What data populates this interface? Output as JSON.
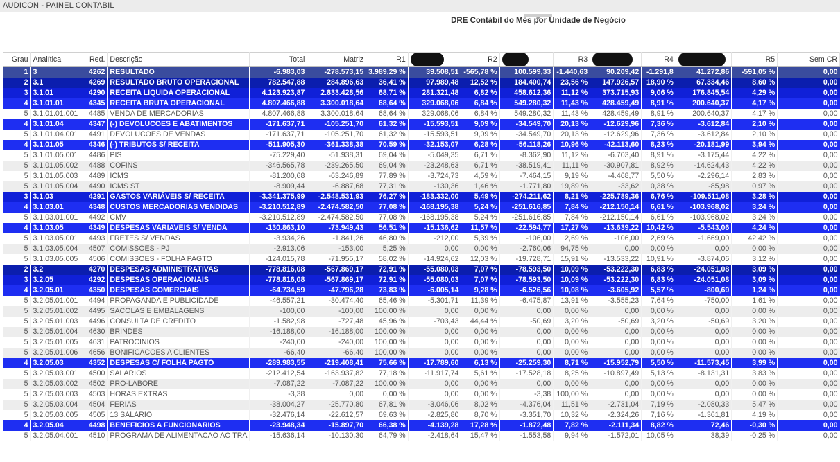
{
  "app": {
    "title": "AUDICON - PAINEL CONTABIL"
  },
  "report": {
    "title": "DRE Contábil do Mês por Unidade de Negócio"
  },
  "table": {
    "headers": [
      "Grau",
      "Analítica",
      "Red.",
      "Descrição",
      "Total",
      "Matriz",
      "R1",
      "",
      "R2",
      "",
      "R3",
      "",
      "R4",
      "",
      "R5",
      "Sem CR"
    ],
    "rows": [
      {
        "level": 1,
        "cells": [
          "1",
          "3",
          "4262",
          "RESULTADO",
          "-6.983,03",
          "-278.573,15",
          "3.989,29 %",
          "39.508,51",
          "-565,78 %",
          "100.599,33",
          "-1.440,63",
          "90.209,42",
          "-1.291,8",
          "41.272,86",
          "-591,05 %",
          "0,00"
        ]
      },
      {
        "level": 2,
        "cells": [
          "2",
          "3.1",
          "4269",
          "RESULTADO BRUTO OPERACIONAL",
          "782.547,88",
          "284.896,63",
          "36,41 %",
          "97.989,48",
          "12,52 %",
          "184.400,74",
          "23,56 %",
          "147.926,57",
          "18,90 %",
          "67.334,46",
          "8,60 %",
          "0,00"
        ]
      },
      {
        "level": 3,
        "cells": [
          "3",
          "3.1.01",
          "4290",
          "RECEITA LIQUIDA OPERACIONAL",
          "4.123.923,87",
          "2.833.428,56",
          "68,71 %",
          "281.321,48",
          "6,82 %",
          "458.612,36",
          "11,12 %",
          "373.715,93",
          "9,06 %",
          "176.845,54",
          "4,29 %",
          "0,00"
        ]
      },
      {
        "level": 4,
        "cells": [
          "4",
          "3.1.01.01",
          "4345",
          "RECEITA BRUTA OPERACIONAL",
          "4.807.466,88",
          "3.300.018,64",
          "68,64 %",
          "329.068,06",
          "6,84 %",
          "549.280,32",
          "11,43 %",
          "428.459,49",
          "8,91 %",
          "200.640,37",
          "4,17 %",
          "0,00"
        ]
      },
      {
        "level": 5,
        "cells": [
          "5",
          "3.1.01.01.001",
          "4485",
          "VENDA DE MERCADORIAS",
          "4.807.466,88",
          "3.300.018,64",
          "68,64 %",
          "329.068,06",
          "6,84 %",
          "549.280,32",
          "11,43 %",
          "428.459,49",
          "8,91 %",
          "200.640,37",
          "4,17 %",
          "0,00"
        ]
      },
      {
        "level": 4,
        "cells": [
          "4",
          "3.1.01.04",
          "4347",
          "(-) DEVOLUCOES E ABATIMENTOS",
          "-171.637,71",
          "-105.251,70",
          "61,32 %",
          "-15.593,51",
          "9,09 %",
          "-34.549,70",
          "20,13 %",
          "-12.629,96",
          "7,36 %",
          "-3.612,84",
          "2,10 %",
          "0,00"
        ]
      },
      {
        "level": 5,
        "cells": [
          "5",
          "3.1.01.04.001",
          "4491",
          "DEVOLUCOES DE VENDAS",
          "-171.637,71",
          "-105.251,70",
          "61,32 %",
          "-15.593,51",
          "9,09 %",
          "-34.549,70",
          "20,13 %",
          "-12.629,96",
          "7,36 %",
          "-3.612,84",
          "2,10 %",
          "0,00"
        ]
      },
      {
        "level": 4,
        "cells": [
          "4",
          "3.1.01.05",
          "4346",
          "(-) TRIBUTOS S/ RECEITA",
          "-511.905,30",
          "-361.338,38",
          "70,59 %",
          "-32.153,07",
          "6,28 %",
          "-56.118,26",
          "10,96 %",
          "-42.113,60",
          "8,23 %",
          "-20.181,99",
          "3,94 %",
          "0,00"
        ]
      },
      {
        "level": 5,
        "cells": [
          "5",
          "3.1.01.05.001",
          "4486",
          "PIS",
          "-75.229,40",
          "-51.938,31",
          "69,04 %",
          "-5.049,35",
          "6,71 %",
          "-8.362,90",
          "11,12 %",
          "-6.703,40",
          "8,91 %",
          "-3.175,44",
          "4,22 %",
          "0,00"
        ]
      },
      {
        "level": 5,
        "cells": [
          "5",
          "3.1.01.05.002",
          "4488",
          "COFINS",
          "-346.565,78",
          "-239.265,50",
          "69,04 %",
          "-23.248,63",
          "6,71 %",
          "-38.519,41",
          "11,11 %",
          "-30.907,81",
          "8,92 %",
          "-14.624,43",
          "4,22 %",
          "0,00"
        ]
      },
      {
        "level": 5,
        "cells": [
          "5",
          "3.1.01.05.003",
          "4489",
          "ICMS",
          "-81.200,68",
          "-63.246,89",
          "77,89 %",
          "-3.724,73",
          "4,59 %",
          "-7.464,15",
          "9,19 %",
          "-4.468,77",
          "5,50 %",
          "-2.296,14",
          "2,83 %",
          "0,00"
        ]
      },
      {
        "level": 5,
        "cells": [
          "5",
          "3.1.01.05.004",
          "4490",
          "ICMS ST",
          "-8.909,44",
          "-6.887,68",
          "77,31 %",
          "-130,36",
          "1,46 %",
          "-1.771,80",
          "19,89 %",
          "-33,62",
          "0,38 %",
          "-85,98",
          "0,97 %",
          "0,00"
        ]
      },
      {
        "level": 3,
        "cells": [
          "3",
          "3.1.03",
          "4291",
          "GASTOS VARIÁVEIS S/ RECEITA",
          "-3.341.375,99",
          "-2.548.531,93",
          "76,27 %",
          "-183.332,00",
          "5,49 %",
          "-274.211,62",
          "8,21 %",
          "-225.789,36",
          "6,76 %",
          "-109.511,08",
          "3,28 %",
          "0,00"
        ]
      },
      {
        "level": 4,
        "cells": [
          "4",
          "3.1.03.01",
          "4348",
          "CUSTOS MERCADORIAS VENDIDAS",
          "-3.210.512,89",
          "-2.474.582,50",
          "77,08 %",
          "-168.195,38",
          "5,24 %",
          "-251.616,85",
          "7,84 %",
          "-212.150,14",
          "6,61 %",
          "-103.968,02",
          "3,24 %",
          "0,00"
        ]
      },
      {
        "level": 5,
        "cells": [
          "5",
          "3.1.03.01.001",
          "4492",
          "CMV",
          "-3.210.512,89",
          "-2.474.582,50",
          "77,08 %",
          "-168.195,38",
          "5,24 %",
          "-251.616,85",
          "7,84 %",
          "-212.150,14",
          "6,61 %",
          "-103.968,02",
          "3,24 %",
          "0,00"
        ]
      },
      {
        "level": 4,
        "cells": [
          "4",
          "3.1.03.05",
          "4349",
          "DESPESAS VARIAVEIS S/ VENDA",
          "-130.863,10",
          "-73.949,43",
          "56,51 %",
          "-15.136,62",
          "11,57 %",
          "-22.594,77",
          "17,27 %",
          "-13.639,22",
          "10,42 %",
          "-5.543,06",
          "4,24 %",
          "0,00"
        ]
      },
      {
        "level": 5,
        "cells": [
          "5",
          "3.1.03.05.001",
          "4493",
          "FRETES S/ VENDAS",
          "-3.934,26",
          "-1.841,26",
          "46,80 %",
          "-212,00",
          "5,39 %",
          "-106,00",
          "2,69 %",
          "-106,00",
          "2,69 %",
          "-1.669,00",
          "42,42 %",
          "0,00"
        ]
      },
      {
        "level": 5,
        "cells": [
          "5",
          "3.1.03.05.004",
          "4507",
          "COMISSOES - PJ",
          "-2.913,06",
          "-153,00",
          "5,25 %",
          "0,00",
          "0,00 %",
          "-2.760,06",
          "94,75 %",
          "0,00",
          "0,00 %",
          "0,00",
          "0,00 %",
          "0,00"
        ]
      },
      {
        "level": 5,
        "cells": [
          "5",
          "3.1.03.05.005",
          "4506",
          "COMISSOES - FOLHA PAGTO",
          "-124.015,78",
          "-71.955,17",
          "58,02 %",
          "-14.924,62",
          "12,03 %",
          "-19.728,71",
          "15,91 %",
          "-13.533,22",
          "10,91 %",
          "-3.874,06",
          "3,12 %",
          "0,00"
        ]
      },
      {
        "level": 2,
        "cells": [
          "2",
          "3.2",
          "4270",
          "DESPESAS ADMINISTRATIVAS",
          "-778.816,08",
          "-567.869,17",
          "72,91 %",
          "-55.080,03",
          "7,07 %",
          "-78.593,50",
          "10,09 %",
          "-53.222,30",
          "6,83 %",
          "-24.051,08",
          "3,09 %",
          "0,00"
        ]
      },
      {
        "level": 3,
        "cells": [
          "3",
          "3.2.05",
          "4292",
          "DESPESAS OPERACIONAIS",
          "-778.816,08",
          "-567.869,17",
          "72,91 %",
          "-55.080,03",
          "7,07 %",
          "-78.593,50",
          "10,09 %",
          "-53.222,30",
          "6,83 %",
          "-24.051,08",
          "3,09 %",
          "0,00"
        ]
      },
      {
        "level": 4,
        "cells": [
          "4",
          "3.2.05.01",
          "4350",
          "DESPESAS COMERCIAIS",
          "-64.734,59",
          "-47.796,28",
          "73,83 %",
          "-6.005,14",
          "9,28 %",
          "-6.526,56",
          "10,08 %",
          "-3.605,92",
          "5,57 %",
          "-800,69",
          "1,24 %",
          "0,00"
        ]
      },
      {
        "level": 5,
        "cells": [
          "5",
          "3.2.05.01.001",
          "4494",
          "PROPAGANDA E PUBLICIDADE",
          "-46.557,21",
          "-30.474,40",
          "65,46 %",
          "-5.301,71",
          "11,39 %",
          "-6.475,87",
          "13,91 %",
          "-3.555,23",
          "7,64 %",
          "-750,00",
          "1,61 %",
          "0,00"
        ]
      },
      {
        "level": 5,
        "cells": [
          "5",
          "3.2.05.01.002",
          "4495",
          "SACOLAS E EMBALAGENS",
          "-100,00",
          "-100,00",
          "100,00 %",
          "0,00",
          "0,00 %",
          "0,00",
          "0,00 %",
          "0,00",
          "0,00 %",
          "0,00",
          "0,00 %",
          "0,00"
        ]
      },
      {
        "level": 5,
        "cells": [
          "5",
          "3.2.05.01.003",
          "4496",
          "CONSULTA DE CREDITO",
          "-1.582,98",
          "-727,48",
          "45,96 %",
          "-703,43",
          "44,44 %",
          "-50,69",
          "3,20 %",
          "-50,69",
          "3,20 %",
          "-50,69",
          "3,20 %",
          "0,00"
        ]
      },
      {
        "level": 5,
        "cells": [
          "5",
          "3.2.05.01.004",
          "4630",
          "BRINDES",
          "-16.188,00",
          "-16.188,00",
          "100,00 %",
          "0,00",
          "0,00 %",
          "0,00",
          "0,00 %",
          "0,00",
          "0,00 %",
          "0,00",
          "0,00 %",
          "0,00"
        ]
      },
      {
        "level": 5,
        "cells": [
          "5",
          "3.2.05.01.005",
          "4631",
          "PATROCINIOS",
          "-240,00",
          "-240,00",
          "100,00 %",
          "0,00",
          "0,00 %",
          "0,00",
          "0,00 %",
          "0,00",
          "0,00 %",
          "0,00",
          "0,00 %",
          "0,00"
        ]
      },
      {
        "level": 5,
        "cells": [
          "5",
          "3.2.05.01.006",
          "4656",
          "BONIFICACOES A CLIENTES",
          "-66,40",
          "-66,40",
          "100,00 %",
          "0,00",
          "0,00 %",
          "0,00",
          "0,00 %",
          "0,00",
          "0,00 %",
          "0,00",
          "0,00 %",
          "0,00"
        ]
      },
      {
        "level": 4,
        "cells": [
          "4",
          "3.2.05.03",
          "4352",
          "DESPESAS C/ FOLHA PAGTO",
          "-289.983,55",
          "-219.408,41",
          "75,66 %",
          "-17.789,60",
          "6,13 %",
          "-25.259,30",
          "8,71 %",
          "-15.952,79",
          "5,50 %",
          "-11.573,45",
          "3,99 %",
          "0,00"
        ]
      },
      {
        "level": 5,
        "cells": [
          "5",
          "3.2.05.03.001",
          "4500",
          "SALARIOS",
          "-212.412,54",
          "-163.937,82",
          "77,18 %",
          "-11.917,74",
          "5,61 %",
          "-17.528,18",
          "8,25 %",
          "-10.897,49",
          "5,13 %",
          "-8.131,31",
          "3,83 %",
          "0,00"
        ]
      },
      {
        "level": 5,
        "cells": [
          "5",
          "3.2.05.03.002",
          "4502",
          "PRO-LABORE",
          "-7.087,22",
          "-7.087,22",
          "100,00 %",
          "0,00",
          "0,00 %",
          "0,00",
          "0,00 %",
          "0,00",
          "0,00 %",
          "0,00",
          "0,00 %",
          "0,00"
        ]
      },
      {
        "level": 5,
        "cells": [
          "5",
          "3.2.05.03.003",
          "4503",
          "HORAS EXTRAS",
          "-3,38",
          "0,00",
          "0,00 %",
          "0,00",
          "0,00 %",
          "-3,38",
          "100,00 %",
          "0,00",
          "0,00 %",
          "0,00",
          "0,00 %",
          "0,00"
        ]
      },
      {
        "level": 5,
        "cells": [
          "5",
          "3.2.05.03.004",
          "4504",
          "FERIAS",
          "-38.004,27",
          "-25.770,80",
          "67,81 %",
          "-3.046,06",
          "8,02 %",
          "-4.376,04",
          "11,51 %",
          "-2.731,04",
          "7,19 %",
          "-2.080,33",
          "5,47 %",
          "0,00"
        ]
      },
      {
        "level": 5,
        "cells": [
          "5",
          "3.2.05.03.005",
          "4505",
          "13 SALARIO",
          "-32.476,14",
          "-22.612,57",
          "69,63 %",
          "-2.825,80",
          "8,70 %",
          "-3.351,70",
          "10,32 %",
          "-2.324,26",
          "7,16 %",
          "-1.361,81",
          "4,19 %",
          "0,00"
        ]
      },
      {
        "level": 4,
        "cells": [
          "4",
          "3.2.05.04",
          "4498",
          "BENEFICIOS A FUNCIONARIOS",
          "-23.948,34",
          "-15.897,70",
          "66,38 %",
          "-4.139,28",
          "17,28 %",
          "-1.872,48",
          "7,82 %",
          "-2.111,34",
          "8,82 %",
          "72,46",
          "-0,30 %",
          "0,00"
        ]
      },
      {
        "level": 5,
        "cells": [
          "5",
          "3.2.05.04.001",
          "4510",
          "PROGRAMA DE ALIMENTACAO AO TRA",
          "-15.636,14",
          "-10.130,30",
          "64,79 %",
          "-2.418,64",
          "15,47 %",
          "-1.553,58",
          "9,94 %",
          "-1.572,01",
          "10,05 %",
          "38,39",
          "-0,25 %",
          "0,00"
        ]
      }
    ]
  }
}
